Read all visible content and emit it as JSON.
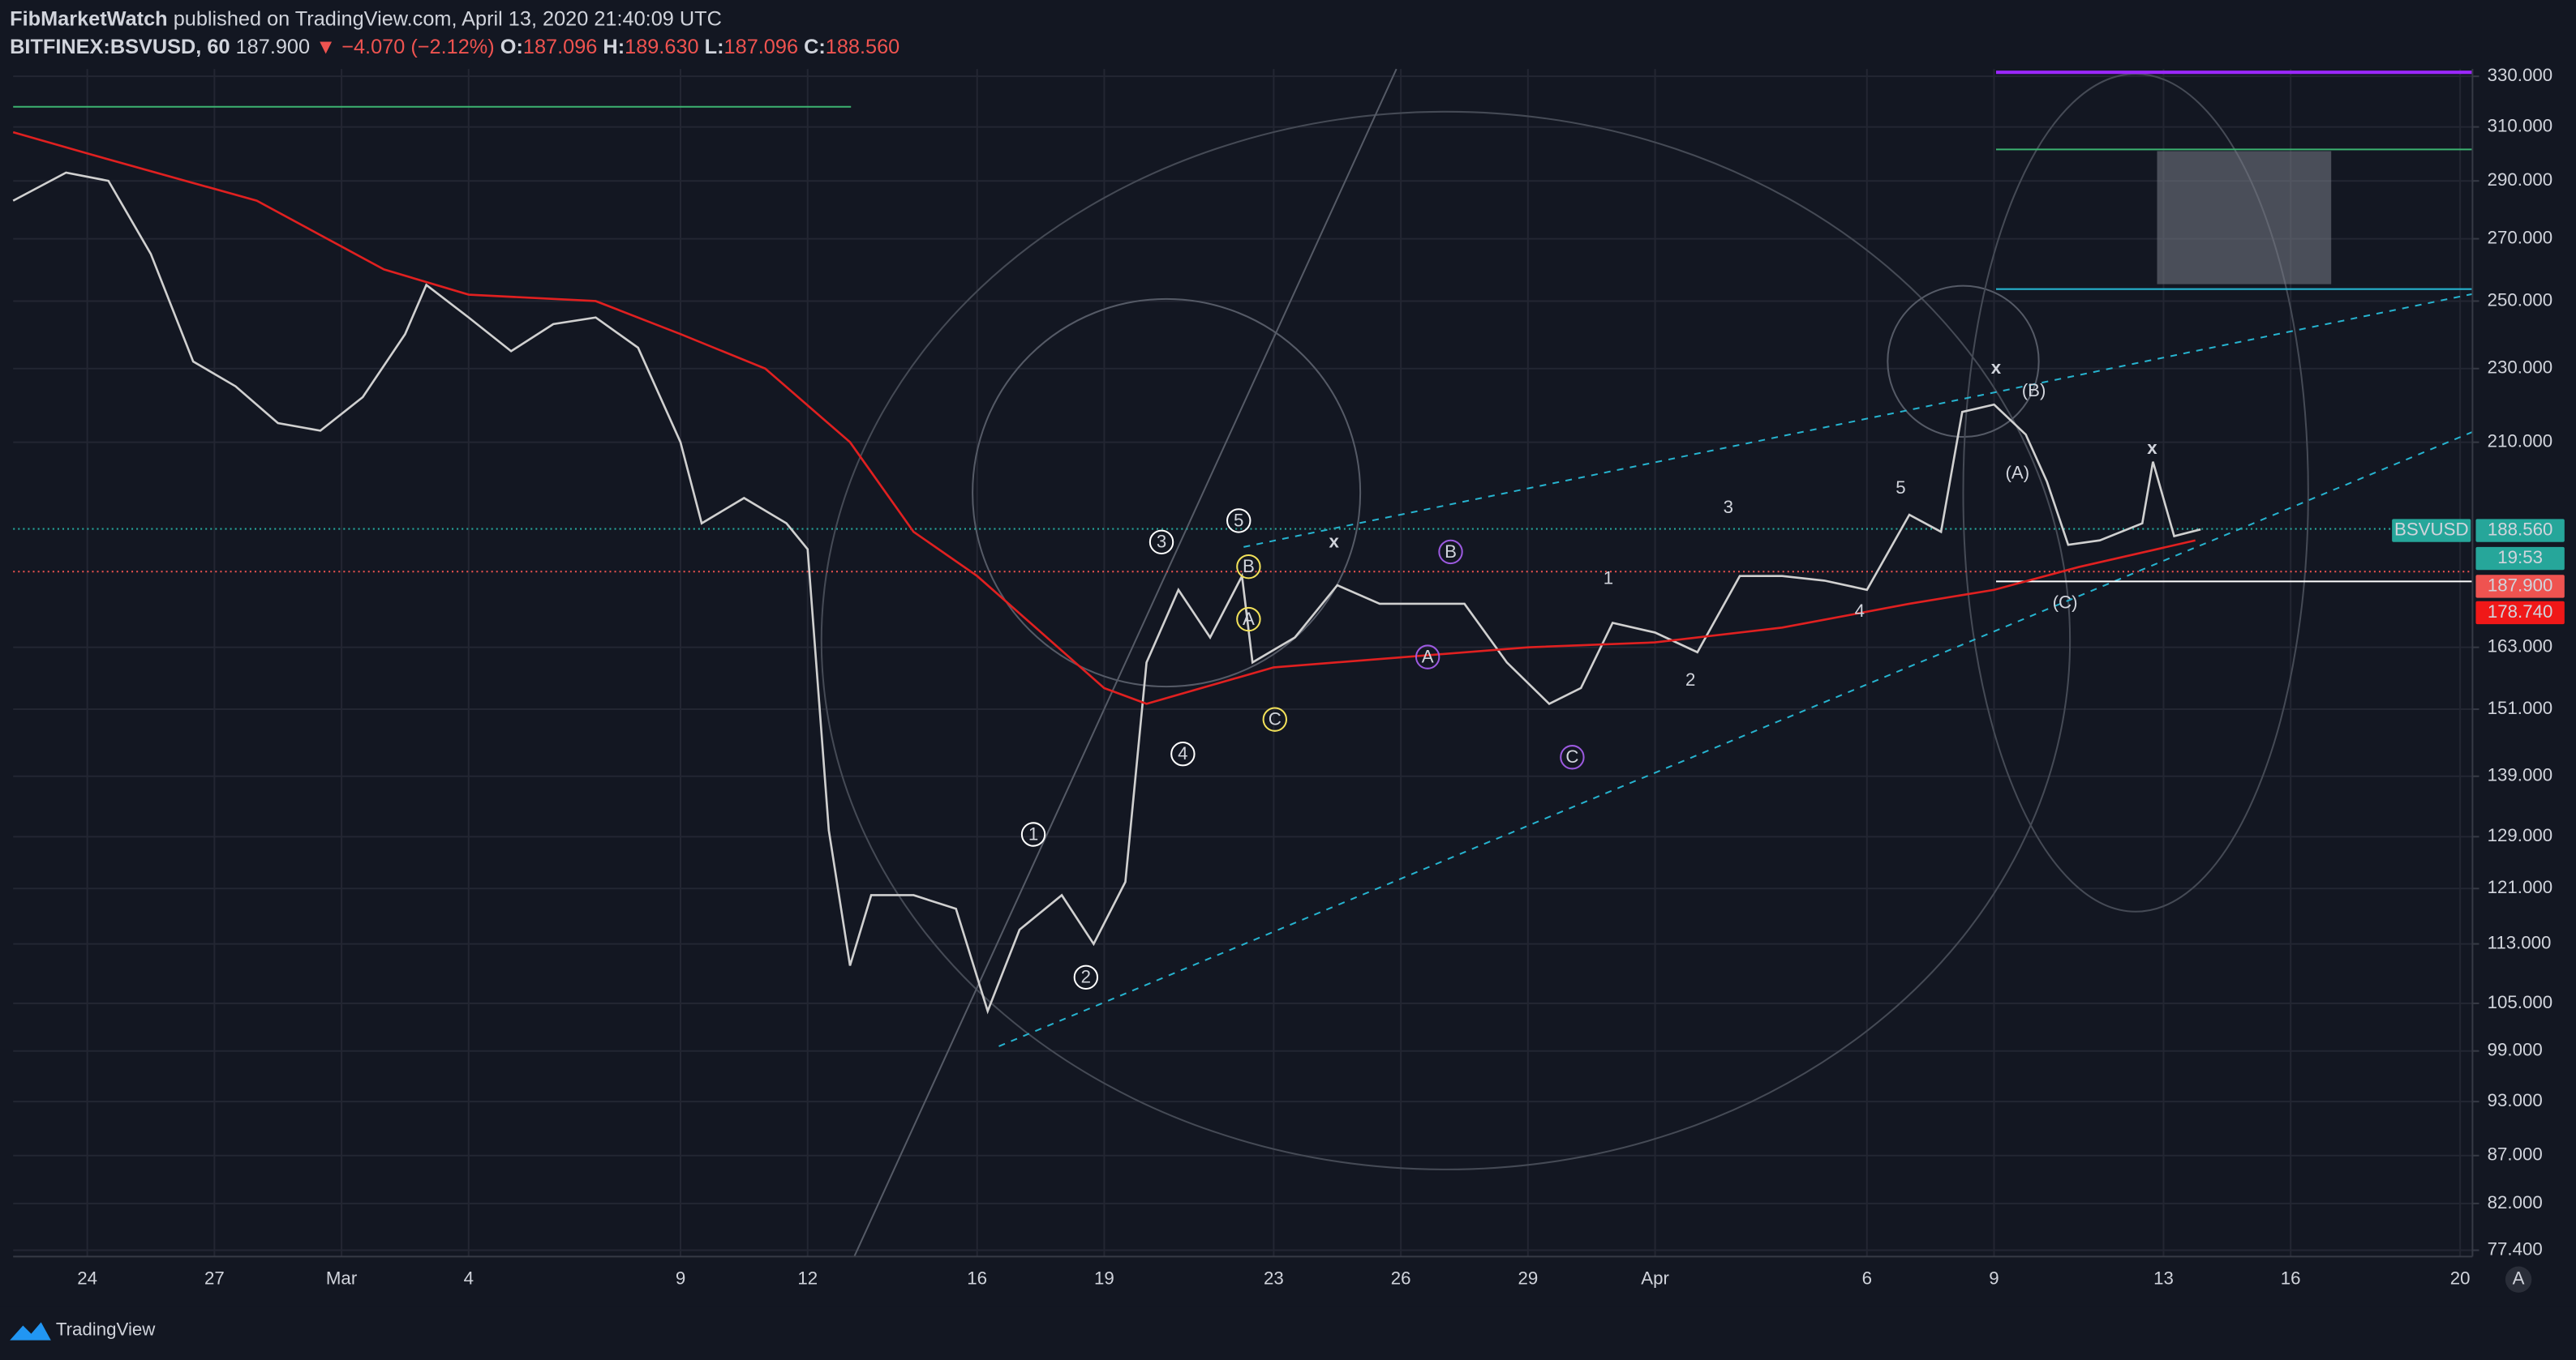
{
  "header": {
    "author": "FibMarketWatch",
    "published": "published on TradingView.com, April 13, 2020 21:40:09 UTC",
    "symbol": "BITFINEX:BSVUSD, 60",
    "last": "187.900",
    "change": "▼ −4.070 (−2.12%)",
    "ohlc": [
      {
        "key": "O:",
        "value": "187.096"
      },
      {
        "key": "H:",
        "value": "189.630"
      },
      {
        "key": "L:",
        "value": "187.096"
      },
      {
        "key": "C:",
        "value": "188.560"
      }
    ]
  },
  "footer": {
    "brand": "TradingView",
    "corner": "A"
  },
  "chart_data": {
    "type": "line",
    "log_scale": true,
    "grid": true,
    "ylim": [
      76.8,
      333
    ],
    "yticks": [
      {
        "value": 330,
        "label": "330.000"
      },
      {
        "value": 310,
        "label": "310.000"
      },
      {
        "value": 290,
        "label": "290.000"
      },
      {
        "value": 270,
        "label": "270.000"
      },
      {
        "value": 250,
        "label": "250.000"
      },
      {
        "value": 230,
        "label": "230.000"
      },
      {
        "value": 210,
        "label": "210.000"
      },
      {
        "value": 163,
        "label": "163.000"
      },
      {
        "value": 151,
        "label": "151.000"
      },
      {
        "value": 139,
        "label": "139.000"
      },
      {
        "value": 129,
        "label": "129.000"
      },
      {
        "value": 121,
        "label": "121.000"
      },
      {
        "value": 113,
        "label": "113.000"
      },
      {
        "value": 105,
        "label": "105.000"
      },
      {
        "value": 99,
        "label": "99.000"
      },
      {
        "value": 93,
        "label": "93.000"
      },
      {
        "value": 87,
        "label": "87.000"
      },
      {
        "value": 82,
        "label": "82.000"
      },
      {
        "value": 77.4,
        "label": "77.400"
      }
    ],
    "xlim": [
      "2020-02-22T06:00",
      "2020-04-20T07:00"
    ],
    "xticks": [
      {
        "value": "2020-02-24T00:00",
        "label": "24"
      },
      {
        "value": "2020-02-27T00:00",
        "label": "27"
      },
      {
        "value": "2020-03-01T00:00",
        "label": "Mar"
      },
      {
        "value": "2020-03-04T00:00",
        "label": "4"
      },
      {
        "value": "2020-03-09T00:00",
        "label": "9"
      },
      {
        "value": "2020-03-12T00:00",
        "label": "12"
      },
      {
        "value": "2020-03-16T00:00",
        "label": "16"
      },
      {
        "value": "2020-03-19T00:00",
        "label": "19"
      },
      {
        "value": "2020-03-23T00:00",
        "label": "23"
      },
      {
        "value": "2020-03-26T00:00",
        "label": "26"
      },
      {
        "value": "2020-03-29T00:00",
        "label": "29"
      },
      {
        "value": "2020-04-01T00:00",
        "label": "Apr"
      },
      {
        "value": "2020-04-06T00:00",
        "label": "6"
      },
      {
        "value": "2020-04-09T00:00",
        "label": "9"
      },
      {
        "value": "2020-04-13T00:00",
        "label": "13"
      },
      {
        "value": "2020-04-16T00:00",
        "label": "16"
      },
      {
        "value": "2020-04-20T00:00",
        "label": "20"
      }
    ],
    "series": [
      {
        "color": "#d0d0d0",
        "x": [
          "2020-02-22T06:00",
          "2020-02-23T12:00",
          "2020-02-24T12:00",
          "2020-02-25T12:00",
          "2020-02-26T12:00",
          "2020-02-27T12:00",
          "2020-02-28T12:00",
          "2020-02-29T12:00",
          "2020-03-01T12:00",
          "2020-03-02T12:00",
          "2020-03-03T00:00",
          "2020-03-04T00:00",
          "2020-03-05T00:00",
          "2020-03-06T00:00",
          "2020-03-07T00:00",
          "2020-03-08T00:00",
          "2020-03-09T00:00",
          "2020-03-09T12:00",
          "2020-03-10T12:00",
          "2020-03-11T12:00",
          "2020-03-12T00:00",
          "2020-03-12T12:00",
          "2020-03-13T00:00",
          "2020-03-13T12:00",
          "2020-03-14T12:00",
          "2020-03-15T12:00",
          "2020-03-16T06:00",
          "2020-03-17T00:00",
          "2020-03-18T00:00",
          "2020-03-18T18:00",
          "2020-03-19T12:00",
          "2020-03-20T00:00",
          "2020-03-20T18:00",
          "2020-03-21T12:00",
          "2020-03-22T06:00",
          "2020-03-22T12:00",
          "2020-03-23T12:00",
          "2020-03-24T12:00",
          "2020-03-25T12:00",
          "2020-03-26T12:00",
          "2020-03-27T12:00",
          "2020-03-28T12:00",
          "2020-03-29T12:00",
          "2020-03-30T06:00",
          "2020-03-31T00:00",
          "2020-04-01T00:00",
          "2020-04-02T00:00",
          "2020-04-03T00:00",
          "2020-04-04T00:00",
          "2020-04-05T00:00",
          "2020-04-06T00:00",
          "2020-04-07T00:00",
          "2020-04-07T18:00",
          "2020-04-08T06:00",
          "2020-04-09T00:00",
          "2020-04-09T18:00",
          "2020-04-10T06:00",
          "2020-04-10T18:00",
          "2020-04-11T12:00",
          "2020-04-12T12:00",
          "2020-04-12T18:00",
          "2020-04-13T06:00",
          "2020-04-13T21:00"
        ],
        "values": [
          283,
          293,
          290,
          265,
          232,
          225,
          215,
          213,
          222,
          240,
          255,
          245,
          235,
          243,
          245,
          236,
          210,
          190,
          196,
          190,
          184,
          130,
          110,
          120,
          120,
          118,
          104,
          115,
          120,
          113,
          122,
          160,
          175,
          165,
          178,
          160,
          165,
          176,
          172,
          172,
          172,
          160,
          152,
          155,
          168,
          166,
          162,
          178,
          178,
          177,
          175,
          192,
          188,
          218,
          220,
          212,
          200,
          185,
          186,
          190,
          205,
          187,
          188.56
        ]
      },
      {
        "color": "#e02020",
        "x": [
          "2020-02-22T06:00",
          "2020-02-24T00:00",
          "2020-02-28T00:00",
          "2020-03-02T00:00",
          "2020-03-04T00:00",
          "2020-03-07T00:00",
          "2020-03-09T00:00",
          "2020-03-11T00:00",
          "2020-03-13T00:00",
          "2020-03-14T12:00",
          "2020-03-16T00:00",
          "2020-03-19T00:00",
          "2020-03-20T00:00",
          "2020-03-23T00:00",
          "2020-03-26T00:00",
          "2020-03-29T00:00",
          "2020-04-01T00:00",
          "2020-04-04T00:00",
          "2020-04-07T00:00",
          "2020-04-09T00:00",
          "2020-04-11T00:00",
          "2020-04-13T18:00"
        ],
        "values": [
          308,
          300,
          283,
          260,
          252,
          250,
          240,
          230,
          210,
          188,
          178,
          155,
          152,
          159,
          161,
          163,
          164,
          167,
          172,
          175,
          180,
          186
        ]
      }
    ],
    "price_labels": [
      {
        "text": "BSVUSD",
        "color": "#26a69a"
      },
      {
        "text": "188.560",
        "color": "#26a69a"
      },
      {
        "text": "19:53",
        "color": "#26a69a"
      },
      {
        "text": "187.900",
        "color": "#ef5350"
      },
      {
        "text": "178.740",
        "color": "#f01818"
      }
    ],
    "annotations": [
      {
        "text": "1",
        "color": "#ffffff",
        "circle": true
      },
      {
        "text": "2",
        "color": "#ffffff",
        "circle": true
      },
      {
        "text": "3",
        "color": "#ffffff",
        "circle": true
      },
      {
        "text": "4",
        "color": "#ffffff",
        "circle": true
      },
      {
        "text": "5",
        "color": "#ffffff",
        "circle": true
      },
      {
        "text": "B",
        "color": "#f2e15a",
        "circle": true
      },
      {
        "text": "A",
        "color": "#f2e15a",
        "circle": true
      },
      {
        "text": "C",
        "color": "#f2e15a",
        "circle": true
      },
      {
        "text": "A",
        "color": "#9c5ae0",
        "circle": true
      },
      {
        "text": "B",
        "color": "#9c5ae0",
        "circle": true
      },
      {
        "text": "C",
        "color": "#9c5ae0",
        "circle": true
      },
      {
        "text": "1",
        "color": "#ffffff",
        "circle": false
      },
      {
        "text": "2",
        "color": "#ffffff",
        "circle": false
      },
      {
        "text": "3",
        "color": "#ffffff",
        "circle": false
      },
      {
        "text": "4",
        "color": "#ffffff",
        "circle": false
      },
      {
        "text": "5",
        "color": "#ffffff",
        "circle": false
      },
      {
        "text": "(A)",
        "color": "#9c5ae0",
        "circle": false
      },
      {
        "text": "(B)",
        "color": "#9c5ae0",
        "circle": false
      },
      {
        "text": "(C)",
        "color": "#9c5ae0",
        "circle": false
      },
      {
        "text": "x",
        "color": "#ffffff",
        "circle": false
      },
      {
        "text": "x",
        "color": "#ffffff",
        "circle": false
      },
      {
        "text": "x",
        "color": "#ffffff",
        "circle": false
      }
    ]
  }
}
